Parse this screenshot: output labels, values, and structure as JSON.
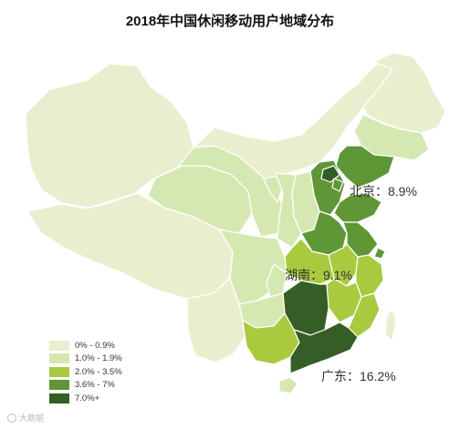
{
  "title": "2018年中国休闲移动用户地域分布",
  "colors": {
    "level1": "#e9efce",
    "level2": "#d6e8b2",
    "level3": "#a9c93f",
    "level4": "#5f9636",
    "level5": "#355e26",
    "border": "#ffffff"
  },
  "callouts": {
    "beijing": "北京：8.9%",
    "hunan": "湖南：9.1%",
    "guangdong": "广东：16.2%"
  },
  "legend": [
    {
      "label": "0% - 0.9%",
      "color": "#e9efce"
    },
    {
      "label": "1.0% - 1.9%",
      "color": "#d6e8b2"
    },
    {
      "label": "2.0% - 3.5%",
      "color": "#a9c93f"
    },
    {
      "label": "3.6% - 7%",
      "color": "#5f9636"
    },
    {
      "label": "7.0%+",
      "color": "#355e26"
    }
  ],
  "watermark": "大数据"
}
